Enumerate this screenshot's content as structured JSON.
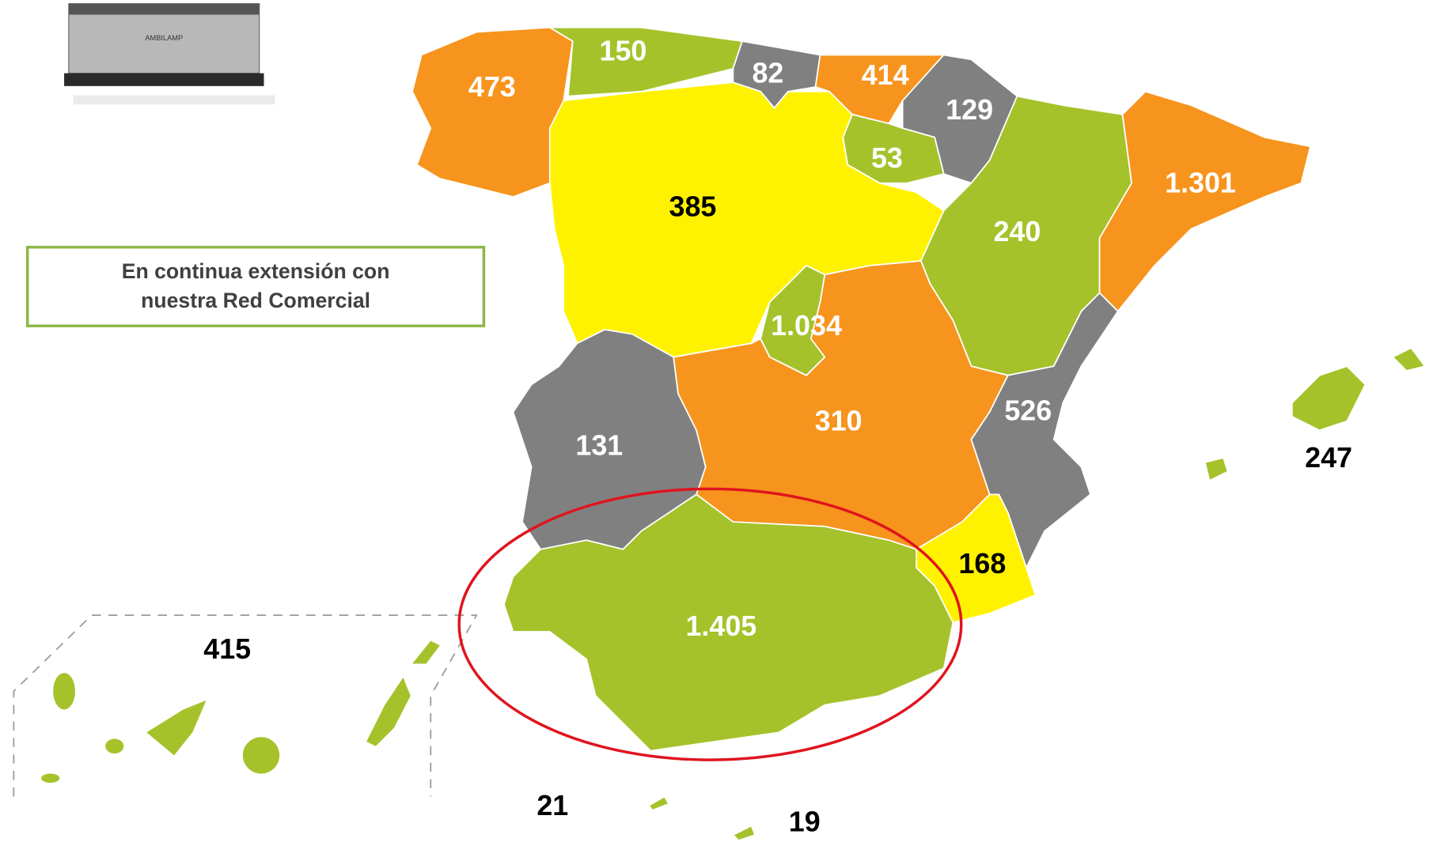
{
  "product": {
    "label": "AMBILAMP"
  },
  "note": {
    "lines": [
      "En continua extensión con",
      "nuestra Red Comercial"
    ]
  },
  "regions": [
    "473",
    "150",
    "82",
    "414",
    "129",
    "53",
    "385",
    "240",
    "1.301",
    "1.034",
    "310",
    "131",
    "526",
    "168",
    "1.405",
    "247",
    "415",
    "21",
    "19"
  ]
}
